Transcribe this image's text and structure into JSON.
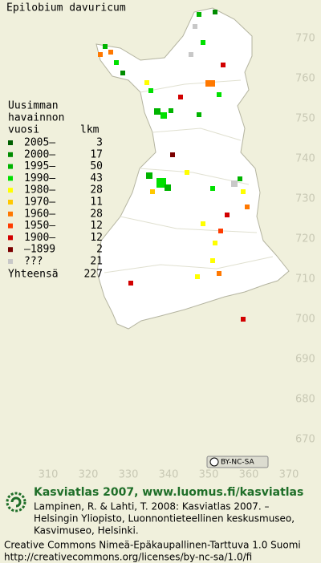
{
  "title": "Epilobium davuricum",
  "legend": {
    "heading": [
      "Uusimman",
      "havainnon",
      "vuosi"
    ],
    "count_heading": "lkm",
    "rows": [
      {
        "label": "2005–",
        "count": 3,
        "color": "#005f00"
      },
      {
        "label": "2000–",
        "count": 17,
        "color": "#008c00"
      },
      {
        "label": "1995–",
        "count": 50,
        "color": "#00b400"
      },
      {
        "label": "1990–",
        "count": 43,
        "color": "#00e000"
      },
      {
        "label": "1980–",
        "count": 28,
        "color": "#ffff00"
      },
      {
        "label": "1970–",
        "count": 11,
        "color": "#ffc800"
      },
      {
        "label": "1960–",
        "count": 28,
        "color": "#ff7800"
      },
      {
        "label": "1950–",
        "count": 12,
        "color": "#ff3c00"
      },
      {
        "label": "1900–",
        "count": 12,
        "color": "#d20000"
      },
      {
        "label": "–1899",
        "count": 2,
        "color": "#7a0000"
      },
      {
        "label": "???",
        "count": 21,
        "color": "#c8c8c8"
      }
    ],
    "total_label": "Yhteensä",
    "total": 227
  },
  "grid": {
    "y_labels": [
      770,
      760,
      750,
      740,
      730,
      720,
      710,
      700,
      690,
      680,
      670
    ],
    "x_labels": [
      310,
      320,
      330,
      340,
      350,
      360,
      370
    ]
  },
  "license_badge": "BY-NC-SA",
  "footer": {
    "site": "Kasviatlas 2007, www.luomus.fi/kasviatlas",
    "citation": [
      "Lampinen, R. & Lahti, T. 2008: Kasviatlas 2007. –",
      "Helsingin Yliopisto, Luonnontieteellinen keskusmuseo,",
      "Kasvimuseo, Helsinki."
    ],
    "license": [
      "Creative Commons Nimeä-Epäkaupallinen-Tarttuva 1.0 Suomi",
      "http://creativecommons.org/licenses/by-nc-sa/1.0/fi"
    ]
  }
}
